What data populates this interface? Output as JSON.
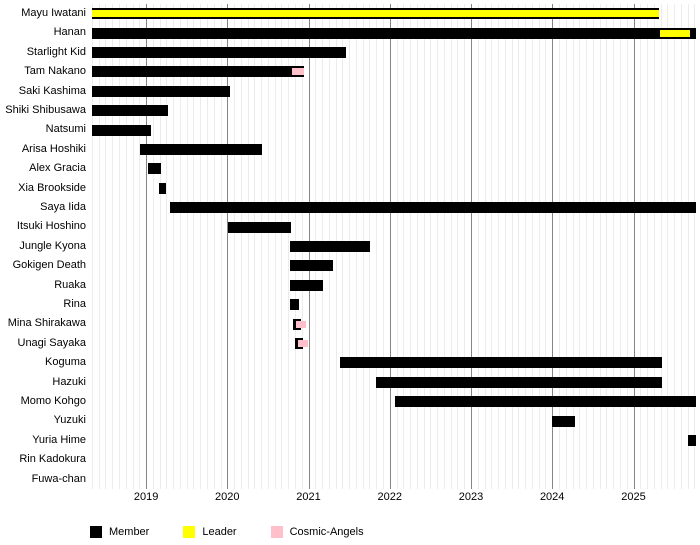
{
  "chart_data": {
    "type": "gantt",
    "title": "",
    "x_axis": {
      "min": 2018.31,
      "max": 2025.77,
      "ticks": [
        2019,
        2020,
        2021,
        2022,
        2023,
        2024,
        2025
      ],
      "minor_gridline_interval": "monthly",
      "grid": true
    },
    "colors": {
      "member": "#000000",
      "leader": "#ffff00",
      "cosmic": "#ffc0cb",
      "grid_minor": "#ececec",
      "grid_major": "#848484"
    },
    "legend": [
      {
        "label": "Member",
        "color_key": "member"
      },
      {
        "label": "Leader",
        "color_key": "leader"
      },
      {
        "label": "Cosmic-Angels",
        "color_key": "cosmic"
      }
    ],
    "legend_position": "bottom-left",
    "members": [
      {
        "name": "Mayu Iwatani",
        "segments": [
          {
            "start": 2018.33,
            "end": 2025.32,
            "type": "member"
          }
        ],
        "overlays": [
          {
            "start": 2018.33,
            "end": 2025.32,
            "type": "leader"
          }
        ]
      },
      {
        "name": "Hanan",
        "segments": [
          {
            "start": 2018.33,
            "end": 2025.77,
            "type": "member"
          }
        ],
        "overlays": [
          {
            "start": 2025.33,
            "end": 2025.7,
            "type": "leader"
          }
        ]
      },
      {
        "name": "Starlight Kid",
        "segments": [
          {
            "start": 2018.33,
            "end": 2021.46,
            "type": "member"
          }
        ]
      },
      {
        "name": "Tam Nakano",
        "segments": [
          {
            "start": 2018.33,
            "end": 2020.95,
            "type": "member"
          }
        ],
        "overlays": [
          {
            "start": 2020.8,
            "end": 2020.95,
            "type": "cosmic"
          }
        ]
      },
      {
        "name": "Saki Kashima",
        "segments": [
          {
            "start": 2018.33,
            "end": 2020.03,
            "type": "member"
          }
        ]
      },
      {
        "name": "Shiki Shibusawa",
        "segments": [
          {
            "start": 2018.33,
            "end": 2019.27,
            "type": "member"
          }
        ]
      },
      {
        "name": "Natsumi",
        "segments": [
          {
            "start": 2018.33,
            "end": 2019.06,
            "type": "member"
          }
        ]
      },
      {
        "name": "Arisa Hoshiki",
        "segments": [
          {
            "start": 2018.93,
            "end": 2020.43,
            "type": "member"
          }
        ]
      },
      {
        "name": "Alex Gracia",
        "segments": [
          {
            "start": 2019.02,
            "end": 2019.18,
            "type": "member"
          }
        ]
      },
      {
        "name": "Xia Brookside",
        "segments": [
          {
            "start": 2019.16,
            "end": 2019.25,
            "type": "member"
          }
        ]
      },
      {
        "name": "Saya Iida",
        "segments": [
          {
            "start": 2019.3,
            "end": 2025.77,
            "type": "member"
          }
        ]
      },
      {
        "name": "Itsuki Hoshino",
        "segments": [
          {
            "start": 2020.01,
            "end": 2020.78,
            "type": "member"
          }
        ]
      },
      {
        "name": "Jungle Kyona",
        "segments": [
          {
            "start": 2020.77,
            "end": 2021.76,
            "type": "member"
          }
        ]
      },
      {
        "name": "Gokigen Death",
        "segments": [
          {
            "start": 2020.77,
            "end": 2021.3,
            "type": "member"
          }
        ]
      },
      {
        "name": "Ruaka",
        "segments": [
          {
            "start": 2020.77,
            "end": 2021.18,
            "type": "member"
          }
        ]
      },
      {
        "name": "Rina",
        "segments": [
          {
            "start": 2020.77,
            "end": 2020.88,
            "type": "member"
          }
        ]
      },
      {
        "name": "Mina Shirakawa",
        "segments": [
          {
            "start": 2020.81,
            "end": 2020.91,
            "type": "member"
          }
        ],
        "overlays": [
          {
            "start": 2020.85,
            "end": 2020.97,
            "type": "cosmic"
          }
        ]
      },
      {
        "name": "Unagi Sayaka",
        "segments": [
          {
            "start": 2020.83,
            "end": 2020.93,
            "type": "member"
          }
        ],
        "overlays": [
          {
            "start": 2020.87,
            "end": 2020.99,
            "type": "cosmic"
          }
        ]
      },
      {
        "name": "Koguma",
        "segments": [
          {
            "start": 2021.39,
            "end": 2025.35,
            "type": "member"
          }
        ]
      },
      {
        "name": "Hazuki",
        "segments": [
          {
            "start": 2021.83,
            "end": 2025.35,
            "type": "member"
          }
        ]
      },
      {
        "name": "Momo Kohgo",
        "segments": [
          {
            "start": 2022.07,
            "end": 2025.77,
            "type": "member"
          }
        ]
      },
      {
        "name": "Yuzuki",
        "segments": [
          {
            "start": 2024.0,
            "end": 2024.28,
            "type": "member"
          }
        ]
      },
      {
        "name": "Yuria Hime",
        "segments": [
          {
            "start": 2025.67,
            "end": 2025.77,
            "type": "member"
          }
        ]
      },
      {
        "name": "Rin Kadokura",
        "segments": []
      },
      {
        "name": "Fuwa-chan",
        "segments": []
      }
    ]
  }
}
